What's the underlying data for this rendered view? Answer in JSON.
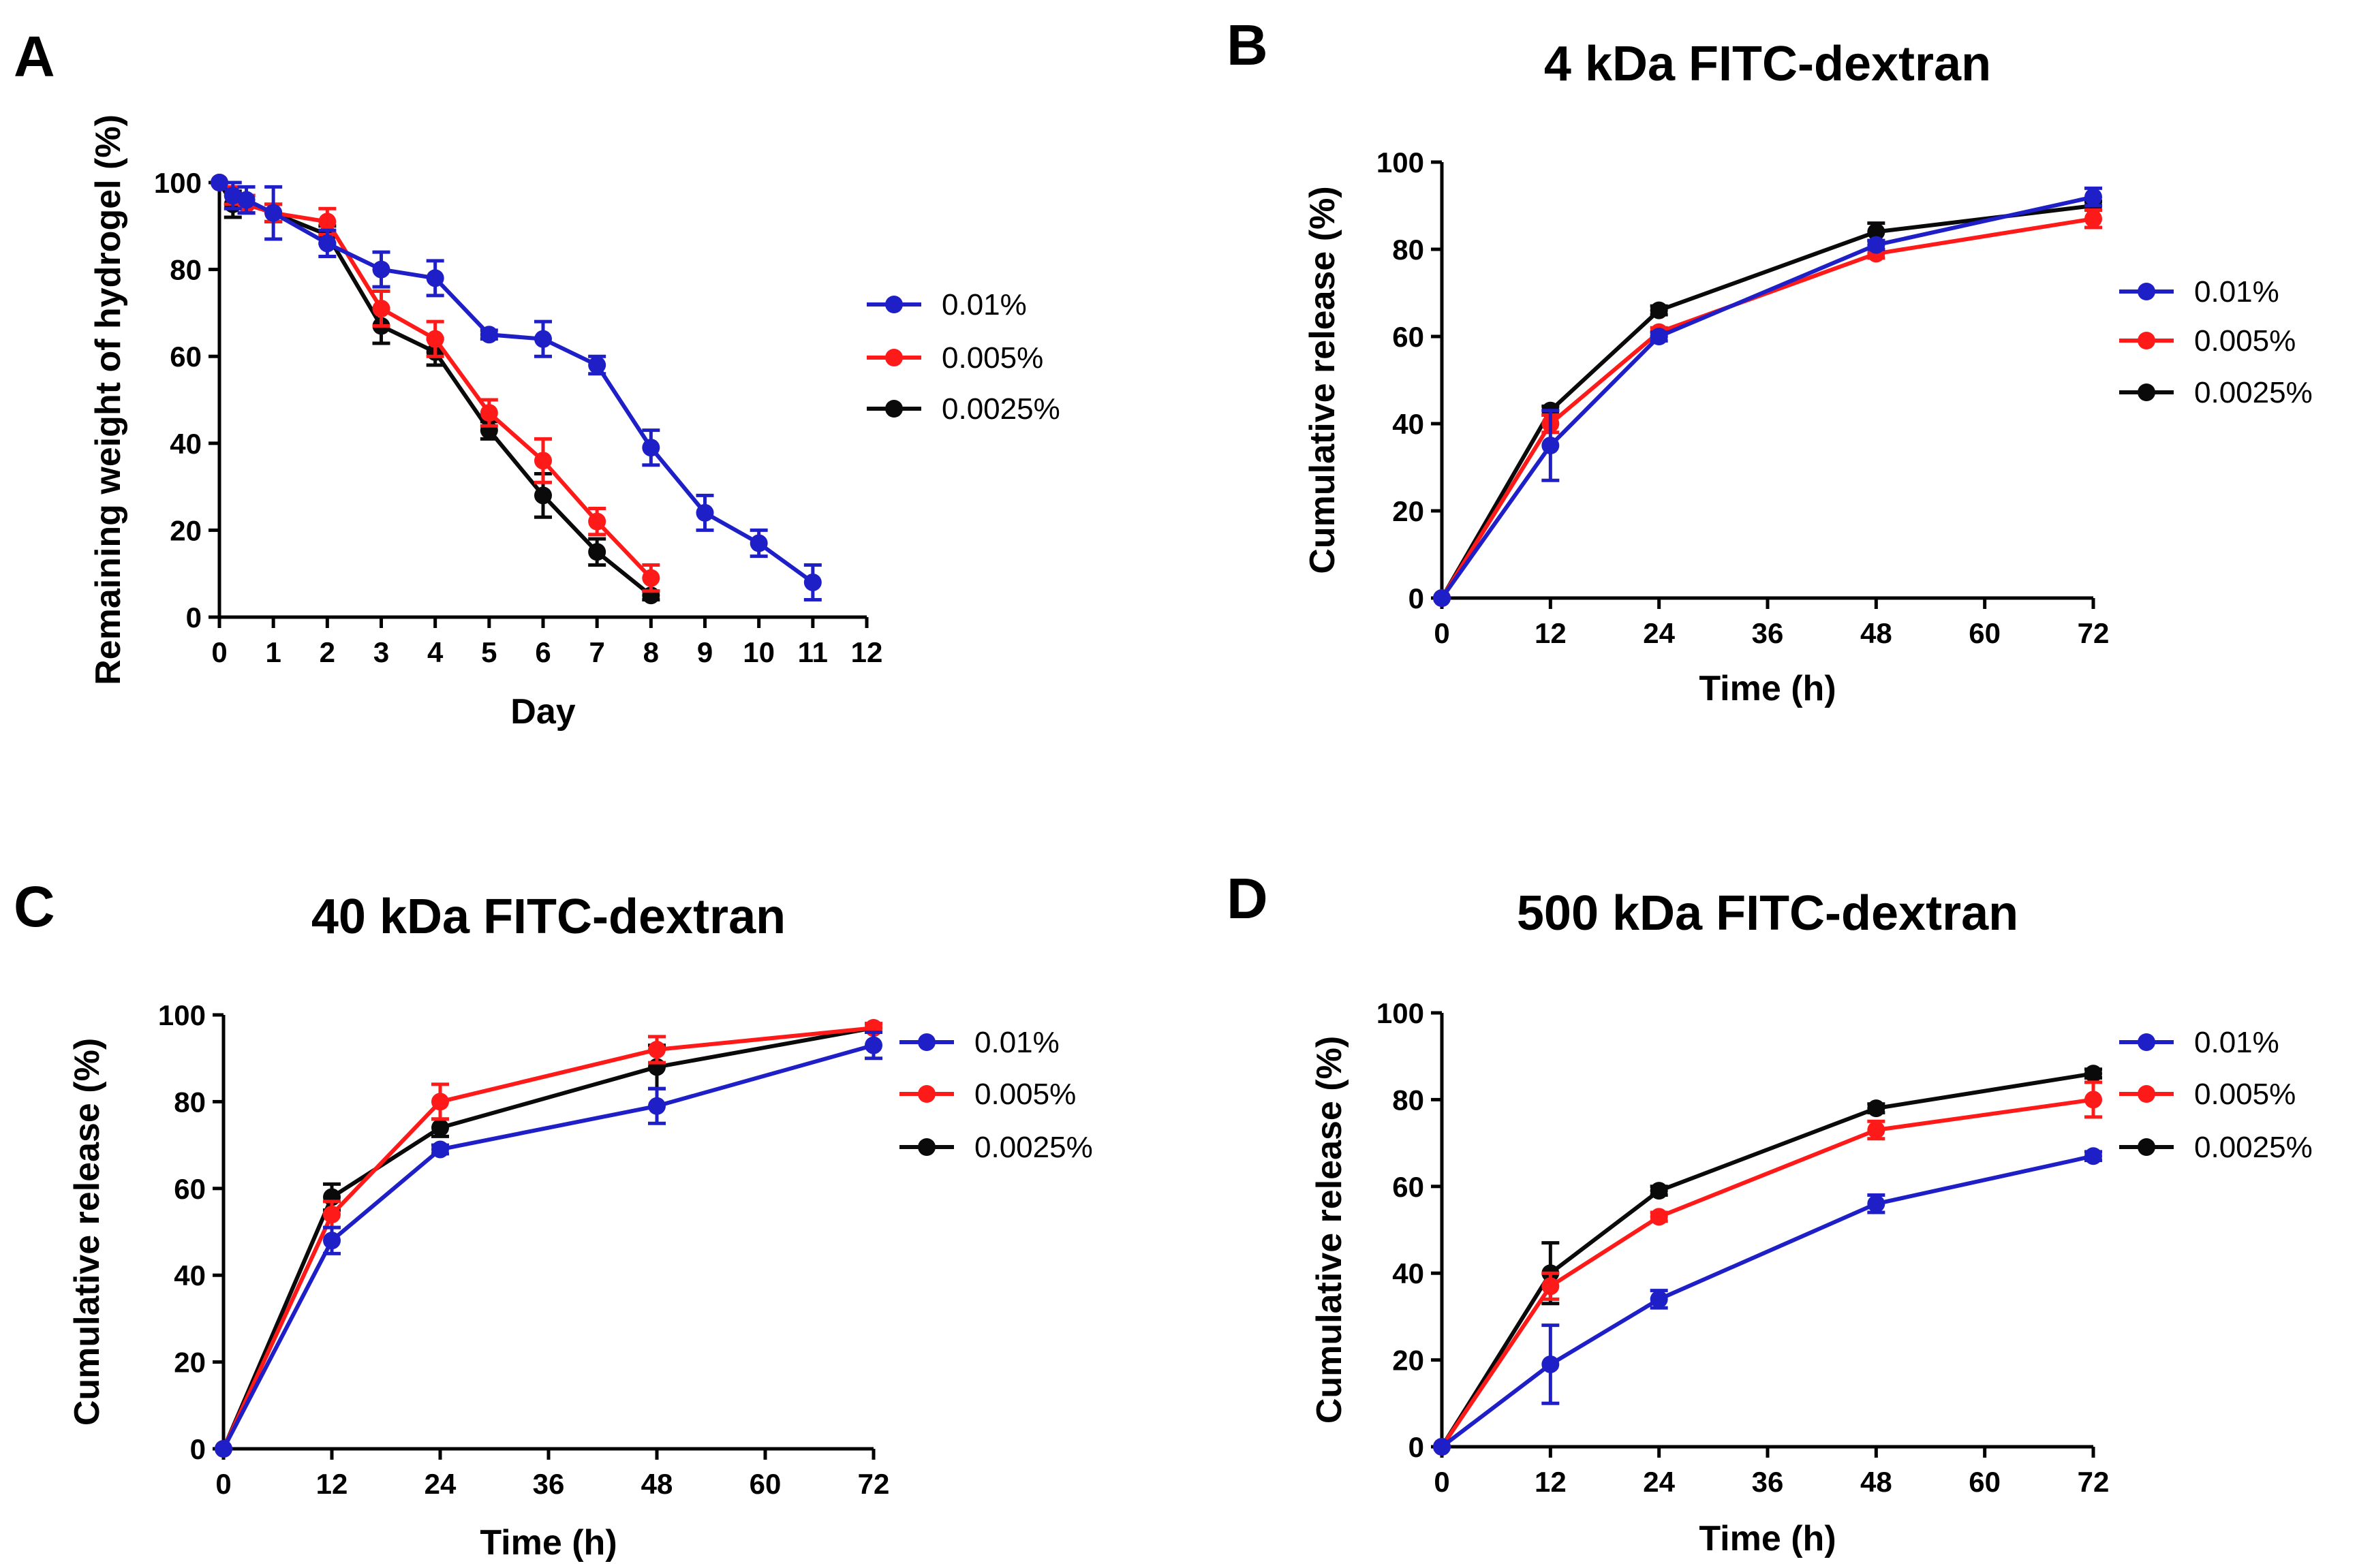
{
  "colors": {
    "0.01%": "#1f1fc8",
    "0.005%": "#ff1a1a",
    "0.0025%": "#0a0a0a"
  },
  "chart_data": [
    {
      "panel": "A",
      "type": "line",
      "title": "",
      "xlabel": "Day",
      "ylabel": "Remaining weight of hydrogel (%)",
      "xlim": [
        0,
        12
      ],
      "ylim": [
        0,
        100
      ],
      "xticks": [
        0,
        1,
        2,
        3,
        4,
        5,
        6,
        7,
        8,
        9,
        10,
        11,
        12
      ],
      "yticks": [
        0,
        20,
        40,
        60,
        80,
        100
      ],
      "legend": "right",
      "series": [
        {
          "name": "0.01%",
          "color": "#1f1fc8",
          "x": [
            0,
            0.25,
            0.5,
            1,
            2,
            3,
            4,
            5,
            6,
            7,
            8,
            9,
            10,
            11
          ],
          "y": [
            100,
            97,
            96,
            93,
            86,
            80,
            78,
            65,
            64,
            58,
            39,
            24,
            17,
            8
          ],
          "err": [
            0,
            3,
            3,
            6,
            3,
            4,
            4,
            1,
            4,
            2,
            4,
            4,
            3,
            4
          ]
        },
        {
          "name": "0.005%",
          "color": "#ff1a1a",
          "x": [
            0,
            0.25,
            0.5,
            1,
            2,
            3,
            4,
            5,
            6,
            7,
            8
          ],
          "y": [
            100,
            97,
            95,
            93,
            91,
            71,
            64,
            47,
            36,
            22,
            9
          ],
          "err": [
            0,
            2,
            2,
            2,
            3,
            4,
            4,
            3,
            5,
            3,
            3
          ]
        },
        {
          "name": "0.0025%",
          "color": "#0a0a0a",
          "x": [
            0,
            0.25,
            0.5,
            1,
            2,
            3,
            4,
            5,
            6,
            7,
            8
          ],
          "y": [
            100,
            95,
            95,
            93,
            88,
            67,
            61,
            43,
            28,
            15,
            5
          ],
          "err": [
            0,
            3,
            2,
            2,
            2,
            4,
            3,
            2,
            5,
            3,
            1
          ]
        }
      ]
    },
    {
      "panel": "B",
      "type": "line",
      "title": "4 kDa FITC-dextran",
      "xlabel": "Time (h)",
      "ylabel": "Cumulative release (%)",
      "xlim": [
        0,
        72
      ],
      "ylim": [
        0,
        100
      ],
      "xticks": [
        0,
        12,
        24,
        36,
        48,
        60,
        72
      ],
      "yticks": [
        0,
        20,
        40,
        60,
        80,
        100
      ],
      "legend": "right",
      "series": [
        {
          "name": "0.01%",
          "color": "#1f1fc8",
          "x": [
            0,
            12,
            24,
            48,
            72
          ],
          "y": [
            0,
            35,
            60,
            81,
            92
          ],
          "err": [
            0,
            8,
            1,
            1,
            2
          ]
        },
        {
          "name": "0.005%",
          "color": "#ff1a1a",
          "x": [
            0,
            12,
            24,
            48,
            72
          ],
          "y": [
            0,
            40,
            61,
            79,
            87
          ],
          "err": [
            0,
            2,
            1,
            1,
            2
          ]
        },
        {
          "name": "0.0025%",
          "color": "#0a0a0a",
          "x": [
            0,
            12,
            24,
            48,
            72
          ],
          "y": [
            0,
            43,
            66,
            84,
            90
          ],
          "err": [
            0,
            1,
            1,
            2,
            1
          ]
        }
      ]
    },
    {
      "panel": "C",
      "type": "line",
      "title": "40 kDa FITC-dextran",
      "xlabel": "Time (h)",
      "ylabel": "Cumulative release (%)",
      "xlim": [
        0,
        72
      ],
      "ylim": [
        0,
        100
      ],
      "xticks": [
        0,
        12,
        24,
        36,
        48,
        60,
        72
      ],
      "yticks": [
        0,
        20,
        40,
        60,
        80,
        100
      ],
      "legend": "right",
      "series": [
        {
          "name": "0.01%",
          "color": "#1f1fc8",
          "x": [
            0,
            12,
            24,
            48,
            72
          ],
          "y": [
            0,
            48,
            69,
            79,
            93
          ],
          "err": [
            0,
            3,
            1,
            4,
            3
          ]
        },
        {
          "name": "0.005%",
          "color": "#ff1a1a",
          "x": [
            0,
            12,
            24,
            48,
            72
          ],
          "y": [
            0,
            54,
            80,
            92,
            97
          ],
          "err": [
            0,
            3,
            4,
            3,
            1
          ]
        },
        {
          "name": "0.0025%",
          "color": "#0a0a0a",
          "x": [
            0,
            12,
            24,
            48,
            72
          ],
          "y": [
            0,
            58,
            74,
            88,
            97
          ],
          "err": [
            0,
            3,
            2,
            5,
            1
          ]
        }
      ]
    },
    {
      "panel": "D",
      "type": "line",
      "title": "500 kDa FITC-dextran",
      "xlabel": "Time (h)",
      "ylabel": "Cumulative release (%)",
      "xlim": [
        0,
        72
      ],
      "ylim": [
        0,
        100
      ],
      "xticks": [
        0,
        12,
        24,
        36,
        48,
        60,
        72
      ],
      "yticks": [
        0,
        20,
        40,
        60,
        80,
        100
      ],
      "legend": "right",
      "series": [
        {
          "name": "0.01%",
          "color": "#1f1fc8",
          "x": [
            0,
            12,
            24,
            48,
            72
          ],
          "y": [
            0,
            19,
            34,
            56,
            67
          ],
          "err": [
            0,
            9,
            2,
            2,
            1
          ]
        },
        {
          "name": "0.005%",
          "color": "#ff1a1a",
          "x": [
            0,
            12,
            24,
            48,
            72
          ],
          "y": [
            0,
            37,
            53,
            73,
            80
          ],
          "err": [
            0,
            3,
            1,
            2,
            4
          ]
        },
        {
          "name": "0.0025%",
          "color": "#0a0a0a",
          "x": [
            0,
            12,
            24,
            48,
            72
          ],
          "y": [
            0,
            40,
            59,
            78,
            86
          ],
          "err": [
            0,
            7,
            1,
            1,
            1
          ]
        }
      ]
    }
  ]
}
